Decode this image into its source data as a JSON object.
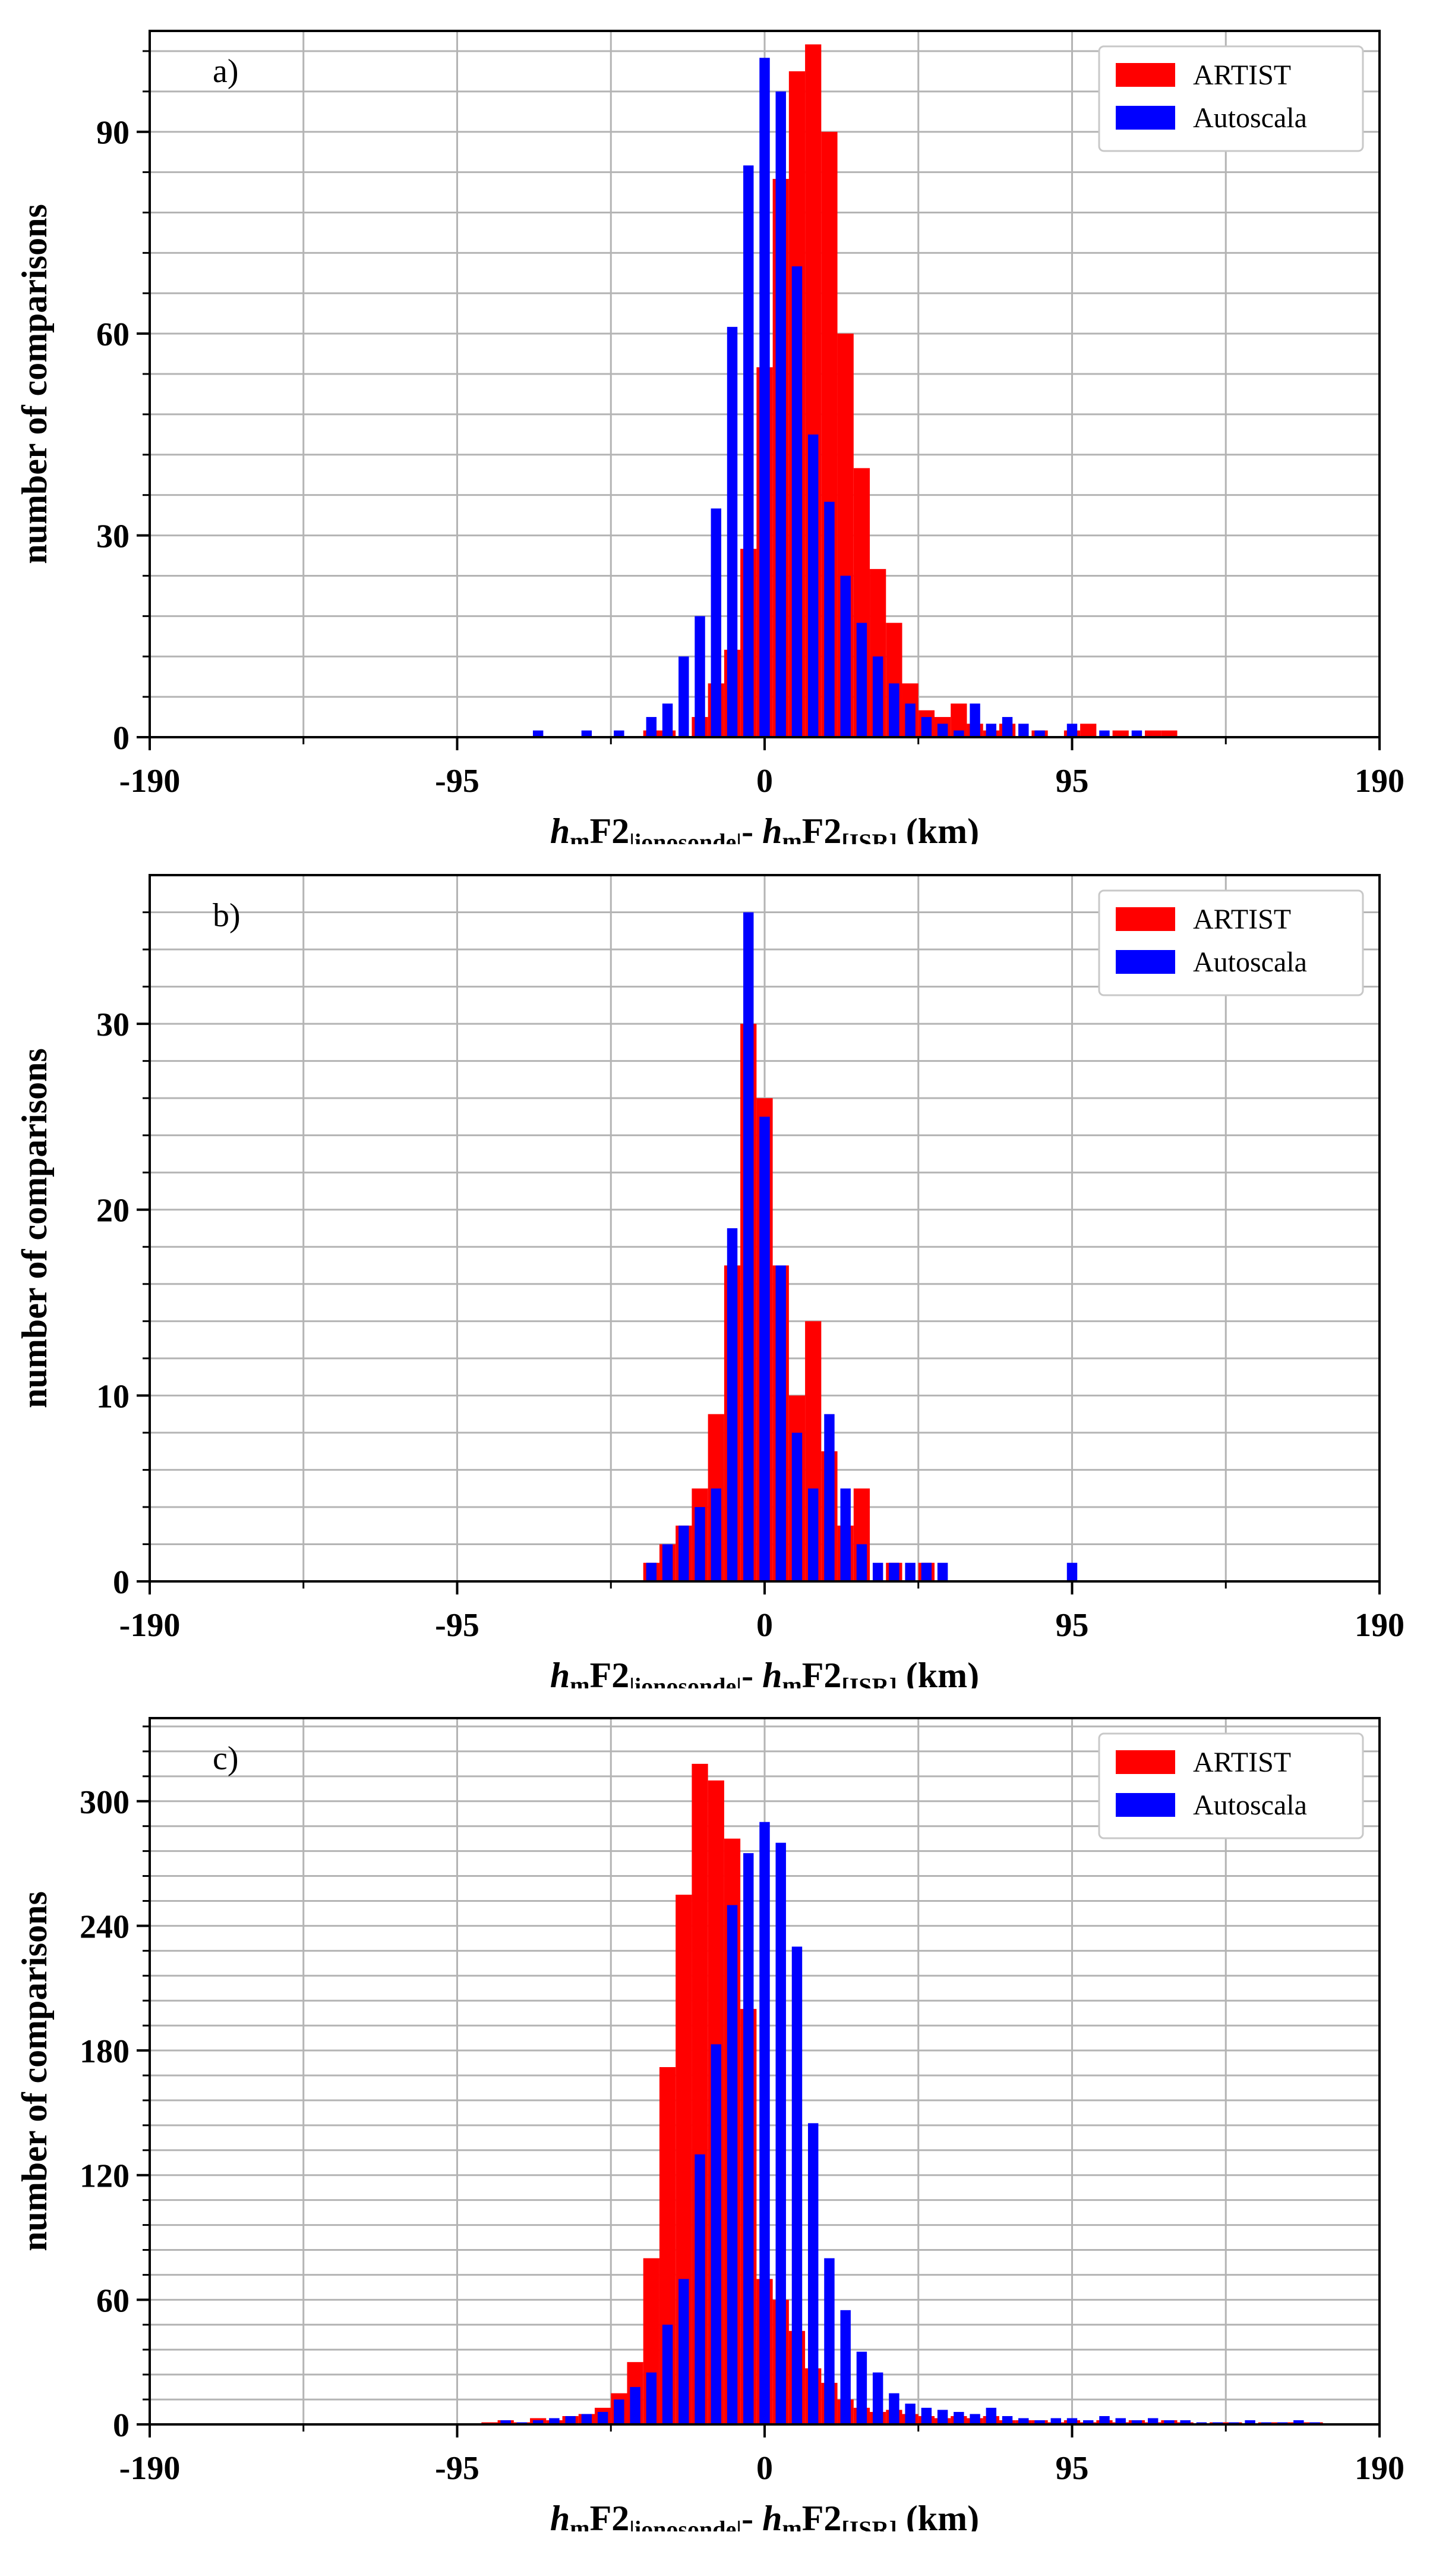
{
  "chart_data": [
    {
      "type": "bar",
      "panel": "a)",
      "xlabel": {
        "h": "h",
        "m": "m",
        "f2": "F2",
        "sub1": "|ionosonde|",
        "dash": "- ",
        "sub2": "[ISR]",
        "unit": " (km)"
      },
      "ylabel": "number of comparisons",
      "xlim": [
        -190,
        190
      ],
      "ylim": [
        0,
        105
      ],
      "xticks": [
        -190,
        -95,
        0,
        95,
        190
      ],
      "yticks": [
        0,
        30,
        60,
        90
      ],
      "grid": true,
      "legend_position": "top-right",
      "bin_width": 5,
      "series": [
        {
          "name": "ARTIST",
          "color": "#ff0000",
          "bins": [
            -35,
            -30,
            -25,
            -20,
            -15,
            -10,
            -5,
            0,
            5,
            10,
            15,
            20,
            25,
            30,
            35,
            40,
            45,
            50,
            55,
            60,
            65,
            70,
            75,
            80,
            85,
            90,
            95,
            100,
            105,
            110,
            115,
            120,
            125
          ],
          "values": [
            1,
            1,
            0,
            3,
            8,
            13,
            28,
            55,
            83,
            99,
            103,
            90,
            60,
            40,
            25,
            17,
            8,
            4,
            3,
            5,
            2,
            1,
            2,
            0,
            1,
            0,
            1,
            2,
            0,
            1,
            0,
            1,
            1
          ]
        },
        {
          "name": "Autoscala",
          "color": "#0000ff",
          "bins": [
            -70,
            -55,
            -45,
            -35,
            -30,
            -25,
            -20,
            -15,
            -10,
            -5,
            0,
            5,
            10,
            15,
            20,
            25,
            30,
            35,
            40,
            45,
            50,
            55,
            60,
            65,
            70,
            75,
            80,
            85,
            90,
            95,
            100,
            105,
            110,
            115
          ],
          "values": [
            1,
            1,
            1,
            3,
            5,
            12,
            18,
            34,
            61,
            85,
            101,
            96,
            70,
            45,
            35,
            24,
            17,
            12,
            8,
            5,
            3,
            2,
            1,
            5,
            2,
            3,
            2,
            1,
            0,
            2,
            0,
            1,
            0,
            1
          ]
        }
      ]
    },
    {
      "type": "bar",
      "panel": "b)",
      "xlabel": {
        "h": "h",
        "m": "m",
        "f2": "F2",
        "sub1": "|ionosonde|",
        "dash": "- ",
        "sub2": "[ISR]",
        "unit": " (km)"
      },
      "ylabel": "number of comparisons",
      "xlim": [
        -190,
        190
      ],
      "ylim": [
        0,
        38
      ],
      "xticks": [
        -190,
        -95,
        0,
        95,
        190
      ],
      "yticks": [
        0,
        10,
        20,
        30
      ],
      "grid": true,
      "legend_position": "top-right",
      "bin_width": 5,
      "series": [
        {
          "name": "ARTIST",
          "color": "#ff0000",
          "bins": [
            -35,
            -30,
            -25,
            -20,
            -15,
            -10,
            -5,
            0,
            5,
            10,
            15,
            20,
            25,
            30,
            35,
            40,
            45,
            50
          ],
          "values": [
            1,
            2,
            3,
            5,
            9,
            17,
            30,
            26,
            17,
            10,
            14,
            7,
            3,
            5,
            0,
            1,
            0,
            1
          ]
        },
        {
          "name": "Autoscala",
          "color": "#0000ff",
          "bins": [
            -35,
            -30,
            -25,
            -20,
            -15,
            -10,
            -5,
            0,
            5,
            10,
            15,
            20,
            25,
            30,
            35,
            40,
            45,
            50,
            55,
            95
          ],
          "values": [
            1,
            2,
            3,
            4,
            5,
            19,
            36,
            25,
            17,
            8,
            5,
            9,
            5,
            2,
            1,
            1,
            1,
            1,
            1,
            1
          ]
        }
      ]
    },
    {
      "type": "bar",
      "panel": "c)",
      "xlabel": {
        "h": "h",
        "m": "m",
        "f2": "F2",
        "sub1": "|ionosonde|",
        "dash": "- ",
        "sub2": "[ISR]",
        "unit": " (km)"
      },
      "ylabel": "number of comparisons",
      "xlim": [
        -190,
        190
      ],
      "ylim": [
        0,
        340
      ],
      "xticks": [
        -190,
        -95,
        0,
        95,
        190
      ],
      "yticks": [
        0,
        60,
        120,
        180,
        240,
        300
      ],
      "grid": true,
      "legend_position": "top-right",
      "bin_width": 5,
      "series": [
        {
          "name": "ARTIST",
          "color": "#ff0000",
          "bins": [
            -85,
            -80,
            -75,
            -70,
            -65,
            -60,
            -55,
            -50,
            -45,
            -40,
            -35,
            -30,
            -25,
            -20,
            -15,
            -10,
            -5,
            0,
            5,
            10,
            15,
            20,
            25,
            30,
            35,
            40,
            45,
            50,
            55,
            60,
            65,
            70,
            75,
            80,
            85,
            90,
            95,
            100,
            105,
            110,
            115,
            120,
            125,
            130,
            135,
            140,
            145,
            150,
            155,
            160,
            165,
            170
          ],
          "values": [
            1,
            2,
            1,
            3,
            2,
            4,
            5,
            8,
            15,
            30,
            80,
            172,
            255,
            318,
            310,
            282,
            200,
            70,
            60,
            45,
            27,
            20,
            12,
            8,
            6,
            7,
            5,
            4,
            3,
            4,
            3,
            4,
            2,
            2,
            2,
            1,
            2,
            1,
            2,
            1,
            2,
            1,
            2,
            1,
            0,
            1,
            1,
            0,
            1,
            1,
            1,
            1
          ]
        },
        {
          "name": "Autoscala",
          "color": "#0000ff",
          "bins": [
            -80,
            -75,
            -70,
            -65,
            -60,
            -55,
            -50,
            -45,
            -40,
            -35,
            -30,
            -25,
            -20,
            -15,
            -10,
            -5,
            0,
            5,
            10,
            15,
            20,
            25,
            30,
            35,
            40,
            45,
            50,
            55,
            60,
            65,
            70,
            75,
            80,
            85,
            90,
            95,
            100,
            105,
            110,
            115,
            120,
            125,
            130,
            135,
            140,
            145,
            150,
            155,
            160,
            165,
            170
          ],
          "values": [
            2,
            1,
            2,
            3,
            4,
            5,
            6,
            12,
            18,
            25,
            48,
            70,
            130,
            183,
            250,
            275,
            290,
            280,
            230,
            145,
            80,
            55,
            35,
            25,
            15,
            10,
            8,
            7,
            6,
            5,
            8,
            4,
            3,
            2,
            3,
            3,
            2,
            4,
            3,
            2,
            3,
            2,
            2,
            1,
            1,
            1,
            2,
            1,
            1,
            2,
            1
          ]
        }
      ]
    }
  ]
}
